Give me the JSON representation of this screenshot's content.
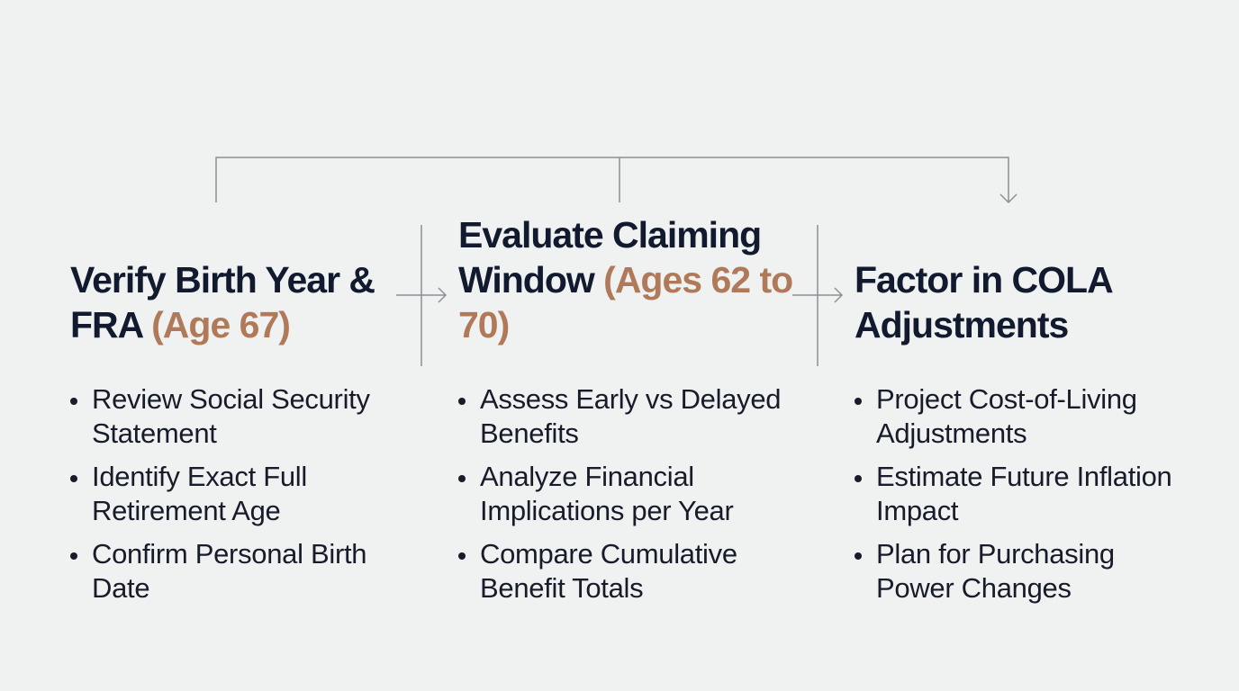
{
  "steps": [
    {
      "title": "Verify Birth Year & FRA",
      "highlight": "(Age 67)",
      "bullets": [
        "Review Social Security Statement",
        "Identify Exact Full Retirement Age",
        "Confirm Personal Birth Date"
      ]
    },
    {
      "title": "Evaluate Claiming Window",
      "highlight": "(Ages 62 to 70)",
      "bullets": [
        "Assess Early vs Delayed Benefits",
        "Analyze Financial Implications per Year",
        "Compare Cumulative Benefit Totals"
      ]
    },
    {
      "title": "Factor in COLA Adjustments",
      "bullets": [
        "Project Cost-of-Living Adjustments",
        "Estimate Future Inflation Impact",
        "Plan for Purchasing Power Changes"
      ]
    }
  ]
}
